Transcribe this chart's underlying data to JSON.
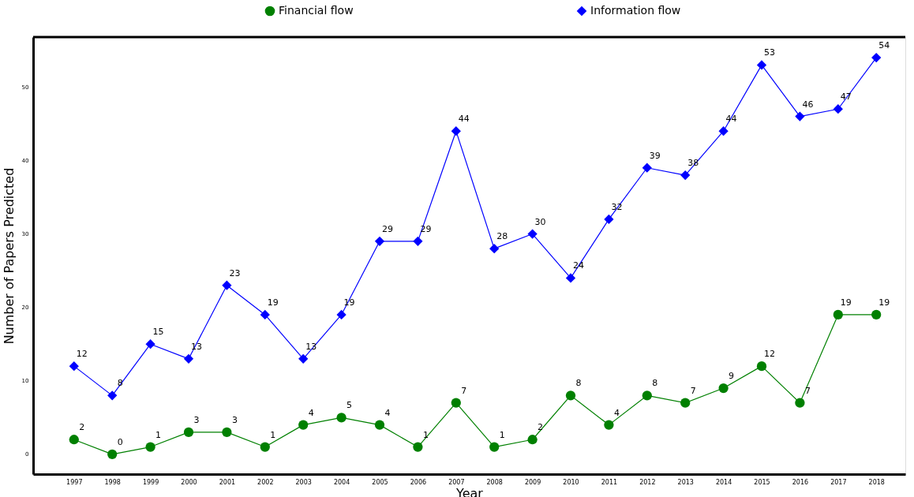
{
  "chart_data": {
    "type": "line",
    "xlabel": "Year",
    "ylabel": "Number of Papers Predicted",
    "categories": [
      "1997",
      "1998",
      "1999",
      "2000",
      "2001",
      "2002",
      "2003",
      "2004",
      "2005",
      "2006",
      "2007",
      "2008",
      "2009",
      "2010",
      "2011",
      "2012",
      "2013",
      "2014",
      "2015",
      "2016",
      "2017",
      "2018"
    ],
    "series": [
      {
        "name": "Financial flow",
        "color": "#008000",
        "marker": "circle",
        "values": [
          2,
          0,
          1,
          3,
          3,
          1,
          4,
          5,
          4,
          1,
          7,
          1,
          2,
          8,
          4,
          8,
          7,
          9,
          12,
          7,
          19,
          19
        ]
      },
      {
        "name": "Information flow",
        "color": "#0000ff",
        "marker": "diamond",
        "values": [
          12,
          8,
          15,
          13,
          23,
          19,
          13,
          19,
          29,
          29,
          44,
          28,
          30,
          24,
          32,
          39,
          38,
          44,
          53,
          46,
          47,
          54
        ]
      }
    ],
    "ylim": [
      -2.7,
      56.8
    ],
    "yticks": [
      0,
      10,
      20,
      30,
      40,
      50
    ],
    "grid": false,
    "legend": "top",
    "data_labels": true,
    "line_style": "solid"
  }
}
